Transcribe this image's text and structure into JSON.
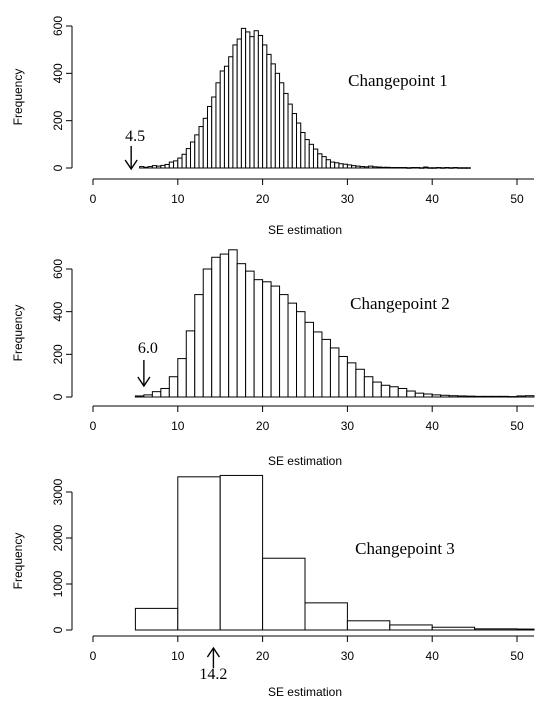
{
  "chart_data": [
    {
      "type": "bar",
      "title": "Changepoint 1",
      "xlabel": "SE estimation",
      "ylabel": "Frequency",
      "xlim": [
        0,
        50
      ],
      "ylim": [
        0,
        600
      ],
      "xticks": [
        0,
        10,
        20,
        30,
        40,
        50
      ],
      "yticks": [
        0,
        200,
        400,
        600
      ],
      "bin_width": 0.5,
      "bin_start": 5.5,
      "values": [
        6,
        3,
        6,
        10,
        8,
        11,
        15,
        25,
        30,
        42,
        58,
        82,
        110,
        140,
        175,
        210,
        260,
        300,
        360,
        410,
        430,
        470,
        520,
        545,
        590,
        575,
        555,
        580,
        560,
        520,
        480,
        440,
        400,
        360,
        315,
        270,
        230,
        190,
        150,
        120,
        100,
        80,
        60,
        48,
        35,
        25,
        22,
        18,
        16,
        13,
        10,
        8,
        6,
        5,
        8,
        5,
        4,
        3,
        3,
        2,
        2,
        2,
        2,
        1,
        2,
        2,
        1,
        4,
        1,
        1,
        2,
        1,
        2,
        1,
        2,
        1,
        1,
        1
      ],
      "annotation": {
        "text": "4.5",
        "x": 4.5,
        "arrow": "down"
      }
    },
    {
      "type": "bar",
      "title": "Changepoint 2",
      "xlabel": "SE estimation",
      "ylabel": "Frequency",
      "xlim": [
        0,
        50
      ],
      "ylim": [
        0,
        600
      ],
      "xticks": [
        0,
        10,
        20,
        30,
        40,
        50
      ],
      "yticks": [
        0,
        200,
        400,
        600
      ],
      "bin_width": 1,
      "bin_start": 5,
      "values": [
        5,
        10,
        25,
        40,
        95,
        180,
        310,
        480,
        600,
        655,
        670,
        690,
        625,
        590,
        550,
        540,
        520,
        480,
        440,
        400,
        350,
        305,
        270,
        230,
        190,
        160,
        130,
        95,
        70,
        55,
        48,
        40,
        28,
        18,
        14,
        10,
        8,
        6,
        5,
        4,
        3,
        3,
        3,
        3,
        2,
        5,
        6
      ],
      "annotation": {
        "text": "6.0",
        "x": 6.0,
        "arrow": "down"
      }
    },
    {
      "type": "bar",
      "title": "Changepoint 3",
      "xlabel": "SE estimation",
      "ylabel": "Frequency",
      "xlim": [
        0,
        50
      ],
      "ylim": [
        0,
        3000
      ],
      "xticks": [
        0,
        10,
        20,
        30,
        40,
        50
      ],
      "yticks": [
        0,
        1000,
        2000,
        3000
      ],
      "bin_width": 5,
      "bin_start": 5,
      "values": [
        470,
        3330,
        3360,
        1560,
        590,
        200,
        110,
        60,
        25,
        20
      ],
      "annotation": {
        "text": "14.2",
        "x": 14.2,
        "arrow": "up"
      }
    }
  ]
}
